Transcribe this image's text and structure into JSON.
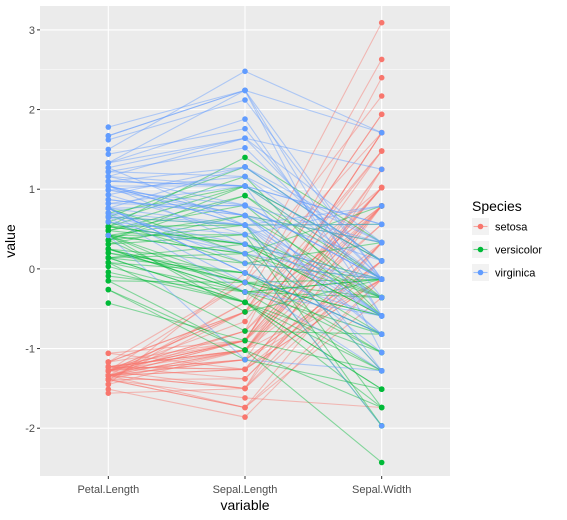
{
  "chart_data": {
    "type": "parallel-coordinates",
    "xlabel": "variable",
    "ylabel": "value",
    "categories": [
      "Petal.Length",
      "Sepal.Length",
      "Sepal.Width"
    ],
    "ylim": [
      -2.6,
      3.3
    ],
    "yticks": [
      -2,
      -1,
      0,
      1,
      2,
      3
    ],
    "ytick_labels": [
      "-2",
      "-1",
      "0",
      "1",
      "2",
      "3"
    ],
    "grid": true,
    "legend": {
      "title": "Species",
      "position": "right"
    },
    "series": [
      {
        "name": "setosa",
        "color": "#F8766D",
        "lines": [
          [
            -1.34,
            -0.9,
            1.02
          ],
          [
            -1.34,
            -1.14,
            -0.13
          ],
          [
            -1.39,
            -1.38,
            0.33
          ],
          [
            -1.28,
            -1.5,
            0.1
          ],
          [
            -1.34,
            -1.02,
            1.25
          ],
          [
            -1.17,
            -0.54,
            1.94
          ],
          [
            -1.34,
            -1.5,
            0.79
          ],
          [
            -1.28,
            -1.02,
            0.79
          ],
          [
            -1.34,
            -1.74,
            -0.36
          ],
          [
            -1.28,
            -1.14,
            0.1
          ],
          [
            -1.28,
            -0.54,
            1.48
          ],
          [
            -1.23,
            -1.26,
            0.79
          ],
          [
            -1.34,
            -1.26,
            -0.13
          ],
          [
            -1.51,
            -1.86,
            -0.13
          ],
          [
            -1.45,
            -0.05,
            2.17
          ],
          [
            -1.28,
            -0.17,
            3.09
          ],
          [
            -1.39,
            -0.54,
            1.94
          ],
          [
            -1.34,
            -0.9,
            1.02
          ],
          [
            -1.17,
            -0.17,
            1.71
          ],
          [
            -1.28,
            -0.9,
            1.71
          ],
          [
            -1.17,
            -0.54,
            0.79
          ],
          [
            -1.28,
            -0.9,
            1.48
          ],
          [
            -1.56,
            -1.5,
            1.25
          ],
          [
            -1.17,
            -0.9,
            0.56
          ],
          [
            -1.06,
            -1.26,
            0.79
          ],
          [
            -1.23,
            -1.02,
            -0.13
          ],
          [
            -1.23,
            -1.02,
            0.79
          ],
          [
            -1.28,
            -0.78,
            1.02
          ],
          [
            -1.34,
            -0.78,
            0.79
          ],
          [
            -1.23,
            -1.38,
            0.33
          ],
          [
            -1.23,
            -1.26,
            0.1
          ],
          [
            -1.28,
            -0.54,
            0.79
          ],
          [
            -1.28,
            -0.78,
            2.4
          ],
          [
            -1.34,
            -0.42,
            2.63
          ],
          [
            -1.28,
            -1.14,
            0.1
          ],
          [
            -1.45,
            -1.02,
            0.33
          ],
          [
            -1.39,
            -0.42,
            1.02
          ],
          [
            -1.34,
            -1.14,
            1.25
          ],
          [
            -1.39,
            -1.74,
            -0.13
          ],
          [
            -1.28,
            -0.9,
            0.79
          ],
          [
            -1.39,
            -1.02,
            1.02
          ],
          [
            -1.39,
            -1.62,
            -1.74
          ],
          [
            -1.39,
            -1.74,
            0.33
          ],
          [
            -1.23,
            -1.02,
            1.02
          ],
          [
            -1.06,
            -0.9,
            1.71
          ],
          [
            -1.34,
            -1.26,
            -0.13
          ],
          [
            -1.23,
            -0.9,
            1.71
          ],
          [
            -1.34,
            -1.5,
            0.33
          ],
          [
            -1.28,
            -0.66,
            1.48
          ],
          [
            -1.34,
            -1.02,
            0.56
          ]
        ]
      },
      {
        "name": "versicolor",
        "color": "#00BA38",
        "lines": [
          [
            0.53,
            1.4,
            0.33
          ],
          [
            0.42,
            0.67,
            0.33
          ],
          [
            0.65,
            1.28,
            0.1
          ],
          [
            0.14,
            -0.42,
            -1.74
          ],
          [
            0.48,
            0.8,
            -0.59
          ],
          [
            0.42,
            -0.17,
            -0.59
          ],
          [
            0.53,
            0.55,
            0.56
          ],
          [
            -0.26,
            -1.14,
            -1.51
          ],
          [
            0.48,
            0.92,
            -0.36
          ],
          [
            0.08,
            -0.78,
            -0.82
          ],
          [
            -0.15,
            -1.02,
            -2.43
          ],
          [
            0.25,
            0.07,
            -0.13
          ],
          [
            0.14,
            0.19,
            -1.97
          ],
          [
            0.53,
            0.31,
            -0.36
          ],
          [
            -0.09,
            -0.29,
            -0.36
          ],
          [
            0.36,
            1.04,
            0.1
          ],
          [
            0.42,
            -0.29,
            -0.13
          ],
          [
            0.2,
            -0.05,
            -0.82
          ],
          [
            0.42,
            0.43,
            -1.97
          ],
          [
            0.08,
            -0.29,
            -1.28
          ],
          [
            0.59,
            0.07,
            0.33
          ],
          [
            0.14,
            0.31,
            -0.59
          ],
          [
            0.65,
            0.55,
            -1.28
          ],
          [
            0.53,
            0.31,
            -0.59
          ],
          [
            0.31,
            0.67,
            -0.36
          ],
          [
            0.36,
            0.92,
            -0.13
          ],
          [
            0.59,
            1.16,
            -0.59
          ],
          [
            0.7,
            1.04,
            -0.13
          ],
          [
            0.42,
            0.19,
            -0.36
          ],
          [
            -0.15,
            -0.17,
            -1.05
          ],
          [
            0.03,
            -0.42,
            -1.51
          ],
          [
            -0.04,
            -0.42,
            -1.51
          ],
          [
            0.08,
            -0.05,
            -0.82
          ],
          [
            0.76,
            0.19,
            -0.82
          ],
          [
            0.42,
            -0.54,
            -0.13
          ],
          [
            0.42,
            0.19,
            0.79
          ],
          [
            0.53,
            1.04,
            0.1
          ],
          [
            0.36,
            0.55,
            -1.74
          ],
          [
            0.25,
            -0.29,
            -0.13
          ],
          [
            0.14,
            -0.42,
            -1.28
          ],
          [
            0.36,
            -0.42,
            -1.05
          ],
          [
            0.48,
            0.31,
            -0.13
          ],
          [
            0.14,
            -0.05,
            -1.05
          ],
          [
            -0.26,
            -1.02,
            -1.74
          ],
          [
            0.25,
            -0.29,
            -0.82
          ],
          [
            0.25,
            -0.17,
            -0.13
          ],
          [
            0.25,
            -0.17,
            -0.36
          ],
          [
            0.31,
            0.43,
            -0.36
          ],
          [
            -0.43,
            -0.9,
            -1.28
          ],
          [
            0.2,
            -0.17,
            -0.59
          ]
        ]
      },
      {
        "name": "virginica",
        "color": "#619CFF",
        "lines": [
          [
            1.27,
            0.55,
            0.56
          ],
          [
            0.76,
            -0.05,
            -0.82
          ],
          [
            1.22,
            1.52,
            -0.13
          ],
          [
            1.04,
            0.55,
            -0.36
          ],
          [
            1.16,
            0.8,
            -0.13
          ],
          [
            1.62,
            2.12,
            -0.13
          ],
          [
            0.42,
            -1.14,
            -1.28
          ],
          [
            1.44,
            1.76,
            -0.36
          ],
          [
            1.16,
            1.04,
            -1.28
          ],
          [
            1.33,
            1.64,
            1.25
          ],
          [
            0.76,
            0.8,
            0.33
          ],
          [
            0.87,
            0.67,
            -0.82
          ],
          [
            0.99,
            1.16,
            -0.13
          ],
          [
            0.7,
            -0.17,
            -1.28
          ],
          [
            0.76,
            -0.05,
            -0.59
          ],
          [
            0.87,
            0.67,
            0.33
          ],
          [
            0.99,
            0.8,
            -0.13
          ],
          [
            1.67,
            2.24,
            1.71
          ],
          [
            1.78,
            2.24,
            -1.05
          ],
          [
            0.7,
            0.19,
            -1.97
          ],
          [
            1.1,
            1.28,
            0.33
          ],
          [
            0.65,
            -0.29,
            -0.59
          ],
          [
            1.67,
            2.24,
            -0.59
          ],
          [
            0.65,
            0.55,
            -0.82
          ],
          [
            1.1,
            1.04,
            0.56
          ],
          [
            1.27,
            1.64,
            0.33
          ],
          [
            0.59,
            0.43,
            -0.59
          ],
          [
            0.65,
            0.31,
            -0.13
          ],
          [
            1.04,
            0.67,
            -0.59
          ],
          [
            1.16,
            1.64,
            -0.13
          ],
          [
            1.33,
            1.88,
            -0.59
          ],
          [
            1.5,
            2.48,
            1.71
          ],
          [
            1.04,
            0.67,
            -0.59
          ],
          [
            0.76,
            0.55,
            -0.59
          ],
          [
            1.04,
            0.31,
            -1.05
          ],
          [
            1.33,
            2.24,
            -0.13
          ],
          [
            1.04,
            0.55,
            0.79
          ],
          [
            0.99,
            0.67,
            0.1
          ],
          [
            0.59,
            0.19,
            -0.13
          ],
          [
            0.93,
            1.28,
            0.1
          ],
          [
            1.04,
            1.04,
            0.1
          ],
          [
            0.76,
            1.28,
            0.1
          ],
          [
            0.76,
            -0.05,
            -0.82
          ],
          [
            1.22,
            1.16,
            0.33
          ],
          [
            1.1,
            1.04,
            0.56
          ],
          [
            0.82,
            1.04,
            -0.13
          ],
          [
            0.7,
            0.55,
            -1.28
          ],
          [
            0.82,
            0.79,
            -0.13
          ],
          [
            0.93,
            0.43,
            0.79
          ],
          [
            0.76,
            0.07,
            -0.13
          ]
        ]
      }
    ]
  }
}
